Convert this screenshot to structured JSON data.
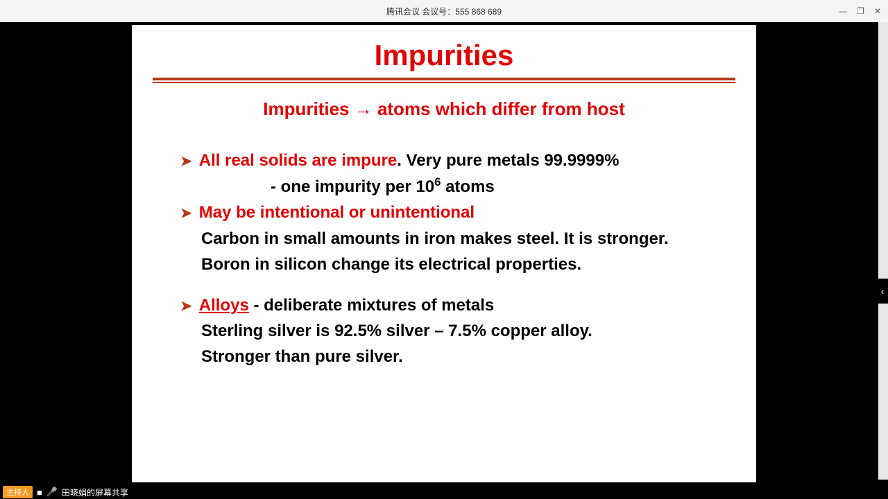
{
  "window": {
    "title": "腾讯会议 会议号：555 868 689",
    "controls": {
      "min": "—",
      "max": "❐",
      "close": "✕"
    }
  },
  "slide": {
    "title": "Impurities",
    "subtitle_pre": "Impurities ",
    "subtitle_arrow": "→",
    "subtitle_post": " atoms which differ from host",
    "b1_red": "All real solids are impure",
    "b1_black": ".  Very pure metals 99.9999%",
    "b1_sub_pre": "- one impurity per 10",
    "b1_sub_sup": "6",
    "b1_sub_post": " atoms",
    "b2_red": "May be intentional or unintentional",
    "b2_line1": "Carbon in small amounts in iron makes steel. It is stronger.",
    "b2_line2": "Boron in silicon change its electrical properties.",
    "b3_red": "Alloys",
    "b3_black": " - deliberate mixtures of metals",
    "b3_line1": "Sterling silver is 92.5% silver – 7.5% copper alloy.",
    "b3_line2": "Stronger than pure silver."
  },
  "bottombar": {
    "host": "主持人",
    "share_text": "田晓娟的屏幕共享"
  },
  "colors": {
    "red": "#e30000",
    "rule": "#b53a1d",
    "bg": "#000000",
    "slide_bg": "#ffffff"
  }
}
